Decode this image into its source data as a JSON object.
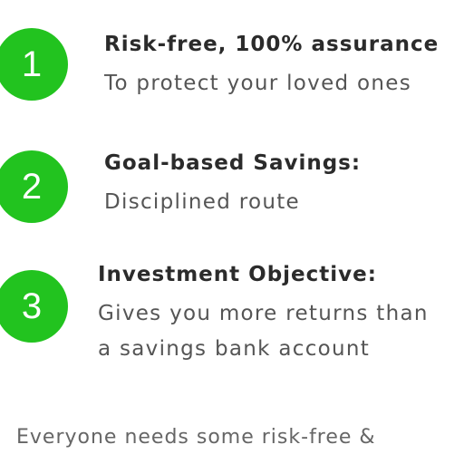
{
  "steps": [
    {
      "number": "1",
      "title": "Risk-free, 100% assurance",
      "description_lines": [
        "To protect your loved ones"
      ]
    },
    {
      "number": "2",
      "title": "Goal-based Savings:",
      "description_lines": [
        "Disciplined route"
      ]
    },
    {
      "number": "3",
      "title": "Investment Objective:",
      "description_lines": [
        "Gives you more returns than",
        "a savings bank account"
      ]
    }
  ],
  "footer": {
    "text": "Everyone needs some risk-free &"
  },
  "colors": {
    "badge": "#22c31f",
    "title": "#2b2b2b",
    "description": "#555555",
    "footer": "#666666"
  }
}
